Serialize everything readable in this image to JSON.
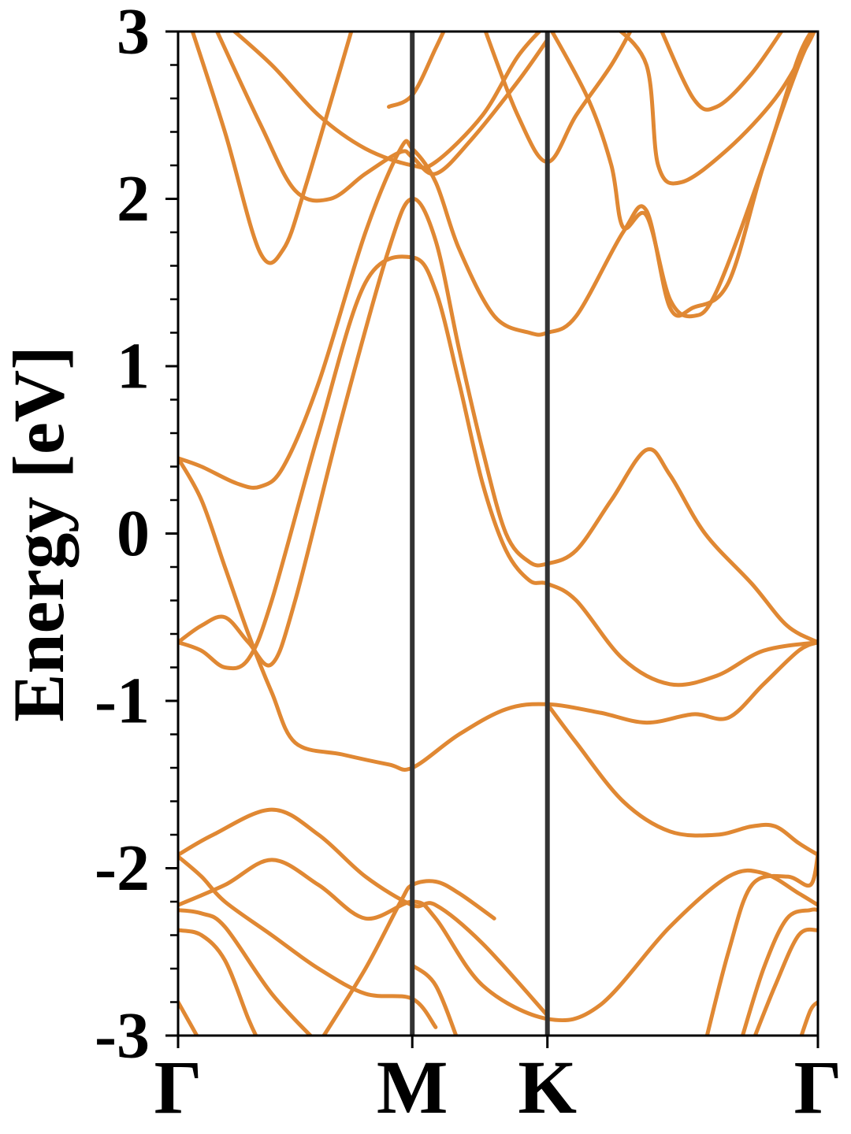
{
  "chart_data": {
    "type": "line",
    "title": "",
    "xlabel": "",
    "ylabel": "Energy [eV]",
    "ylim": [
      -3,
      3
    ],
    "y_ticks": [
      -3,
      -2,
      -1,
      0,
      1,
      2,
      3
    ],
    "y_tick_labels": [
      "-3",
      "-2",
      "-1",
      "0",
      "1",
      "2",
      "3"
    ],
    "y_minor_step": 0.2,
    "k_path": [
      {
        "label": "Γ",
        "k": 0
      },
      {
        "label": "M",
        "k": 1
      },
      {
        "label": "K",
        "k": 1.577
      },
      {
        "label": "Γ",
        "k": 2.732
      }
    ],
    "line_color": "#E08833",
    "divider_color": "#333333",
    "grid": false,
    "bands": [
      {
        "points": [
          [
            0,
            -2.22
          ],
          [
            0.2,
            -2.1
          ],
          [
            0.4,
            -1.95
          ],
          [
            0.6,
            -2.1
          ],
          [
            0.8,
            -2.3
          ],
          [
            1,
            -2.2
          ],
          [
            1.1,
            -2.3
          ],
          [
            1.3,
            -2.7
          ],
          [
            1.577,
            -2.9
          ],
          [
            1.8,
            -2.82
          ],
          [
            2.1,
            -2.35
          ],
          [
            2.35,
            -2.05
          ],
          [
            2.5,
            -2.03
          ],
          [
            2.65,
            -2.15
          ],
          [
            2.732,
            -2.22
          ]
        ]
      },
      {
        "points": [
          [
            0,
            -1.93
          ],
          [
            0.1,
            -2.05
          ],
          [
            0.2,
            -2.2
          ],
          [
            0.4,
            -2.4
          ],
          [
            0.6,
            -2.6
          ],
          [
            0.8,
            -2.75
          ],
          [
            1,
            -2.78
          ],
          [
            1.1,
            -2.95
          ]
        ]
      },
      {
        "points": [
          [
            0,
            -1.92
          ],
          [
            0.15,
            -1.8
          ],
          [
            0.4,
            -1.65
          ],
          [
            0.6,
            -1.8
          ],
          [
            0.8,
            -2.05
          ],
          [
            1,
            -2.22
          ],
          [
            1.1,
            -2.22
          ],
          [
            1.3,
            -2.45
          ],
          [
            1.577,
            -2.88
          ]
        ]
      },
      {
        "points": [
          [
            0,
            -2.25
          ],
          [
            0.1,
            -2.27
          ],
          [
            0.2,
            -2.35
          ],
          [
            0.4,
            -2.75
          ],
          [
            0.6,
            -3.05
          ]
        ]
      },
      {
        "points": [
          [
            0,
            -2.37
          ],
          [
            0.1,
            -2.4
          ],
          [
            0.2,
            -2.55
          ],
          [
            0.3,
            -2.9
          ],
          [
            0.35,
            -3.05
          ]
        ]
      },
      {
        "points": [
          [
            0,
            -2.8
          ],
          [
            0.1,
            -3.05
          ]
        ]
      },
      {
        "points": [
          [
            0.6,
            -3.05
          ],
          [
            0.8,
            -2.6
          ],
          [
            0.95,
            -2.2
          ],
          [
            1,
            -2.1
          ],
          [
            1.1,
            -2.08
          ],
          [
            1.2,
            -2.15
          ],
          [
            1.35,
            -2.3
          ]
        ]
      },
      {
        "points": [
          [
            1,
            -2.58
          ],
          [
            1.1,
            -2.7
          ],
          [
            1.2,
            -3.05
          ]
        ]
      },
      {
        "points": [
          [
            0,
            -0.65
          ],
          [
            0.1,
            -0.7
          ],
          [
            0.2,
            -0.8
          ],
          [
            0.3,
            -0.75
          ],
          [
            0.4,
            -0.4
          ],
          [
            0.6,
            0.6
          ],
          [
            0.8,
            1.5
          ],
          [
            1,
            1.65
          ],
          [
            1.1,
            1.45
          ],
          [
            1.2,
            0.9
          ],
          [
            1.3,
            0.3
          ],
          [
            1.4,
            -0.1
          ],
          [
            1.5,
            -0.28
          ],
          [
            1.577,
            -0.3
          ],
          [
            1.7,
            -0.4
          ],
          [
            1.9,
            -0.75
          ],
          [
            2.1,
            -0.9
          ],
          [
            2.3,
            -0.85
          ],
          [
            2.5,
            -0.7
          ],
          [
            2.732,
            -0.65
          ]
        ]
      },
      {
        "points": [
          [
            0,
            -0.65
          ],
          [
            0.1,
            -0.55
          ],
          [
            0.2,
            -0.5
          ],
          [
            0.3,
            -0.65
          ],
          [
            0.4,
            -0.78
          ],
          [
            0.5,
            -0.4
          ],
          [
            0.7,
            0.7
          ],
          [
            0.9,
            1.7
          ],
          [
            1,
            2
          ],
          [
            1.1,
            1.75
          ],
          [
            1.2,
            1.1
          ],
          [
            1.3,
            0.5
          ],
          [
            1.4,
            0.0
          ],
          [
            1.5,
            -0.17
          ],
          [
            1.577,
            -0.18
          ],
          [
            1.7,
            -0.1
          ],
          [
            1.85,
            0.2
          ],
          [
            2.0,
            0.5
          ],
          [
            2.1,
            0.35
          ],
          [
            2.25,
            0.0
          ],
          [
            2.45,
            -0.3
          ],
          [
            2.6,
            -0.55
          ],
          [
            2.732,
            -0.65
          ]
        ]
      },
      {
        "points": [
          [
            0,
            0.45
          ],
          [
            0.1,
            0.4
          ],
          [
            0.25,
            0.3
          ],
          [
            0.35,
            0.28
          ],
          [
            0.45,
            0.4
          ],
          [
            0.6,
            0.9
          ],
          [
            0.8,
            1.8
          ],
          [
            0.95,
            2.3
          ],
          [
            1,
            2.3
          ],
          [
            1.1,
            2.1
          ],
          [
            1.2,
            1.7
          ],
          [
            1.35,
            1.3
          ],
          [
            1.5,
            1.2
          ],
          [
            1.577,
            1.2
          ],
          [
            1.7,
            1.3
          ],
          [
            1.9,
            1.8
          ],
          [
            2,
            1.93
          ],
          [
            2.1,
            1.35
          ],
          [
            2.2,
            1.35
          ],
          [
            2.35,
            1.5
          ],
          [
            2.5,
            2.2
          ],
          [
            2.65,
            2.8
          ],
          [
            2.732,
            3.05
          ]
        ]
      },
      {
        "points": [
          [
            0,
            0.45
          ],
          [
            0.1,
            0.2
          ],
          [
            0.2,
            -0.2
          ],
          [
            0.3,
            -0.6
          ],
          [
            0.4,
            -0.95
          ],
          [
            0.5,
            -1.25
          ],
          [
            0.7,
            -1.32
          ],
          [
            0.9,
            -1.38
          ],
          [
            1,
            -1.4
          ],
          [
            1.2,
            -1.2
          ],
          [
            1.4,
            -1.05
          ],
          [
            1.577,
            -1.02
          ],
          [
            1.8,
            -1.07
          ],
          [
            2,
            -1.13
          ],
          [
            2.2,
            -1.08
          ],
          [
            2.35,
            -1.1
          ],
          [
            2.5,
            -0.9
          ],
          [
            2.65,
            -0.7
          ],
          [
            2.732,
            -0.65
          ]
        ]
      },
      {
        "points": [
          [
            1.577,
            -1.02
          ],
          [
            1.7,
            -1.25
          ],
          [
            1.9,
            -1.6
          ],
          [
            2.1,
            -1.78
          ],
          [
            2.3,
            -1.8
          ],
          [
            2.45,
            -1.75
          ],
          [
            2.55,
            -1.75
          ],
          [
            2.65,
            -1.85
          ],
          [
            2.732,
            -1.92
          ]
        ]
      },
      {
        "points": [
          [
            0.05,
            3.05
          ],
          [
            0.2,
            2.4
          ],
          [
            0.35,
            1.68
          ],
          [
            0.45,
            1.7
          ],
          [
            0.55,
            2.1
          ],
          [
            0.75,
            3.05
          ]
        ]
      },
      {
        "points": [
          [
            0.15,
            3.05
          ],
          [
            0.35,
            2.45
          ],
          [
            0.5,
            2.05
          ],
          [
            0.65,
            2.0
          ],
          [
            0.8,
            2.15
          ],
          [
            0.95,
            2.28
          ],
          [
            1,
            2.25
          ],
          [
            1.1,
            2.15
          ],
          [
            1.25,
            2.35
          ],
          [
            1.45,
            2.7
          ],
          [
            1.577,
            2.95
          ]
        ]
      },
      {
        "points": [
          [
            0.2,
            3.05
          ],
          [
            0.4,
            2.8
          ],
          [
            0.6,
            2.5
          ],
          [
            0.8,
            2.3
          ],
          [
            1,
            2.2
          ],
          [
            1.1,
            2.22
          ],
          [
            1.3,
            2.5
          ],
          [
            1.45,
            2.85
          ],
          [
            1.577,
            3.05
          ]
        ]
      },
      {
        "points": [
          [
            0.9,
            2.55
          ],
          [
            1,
            2.62
          ],
          [
            1.1,
            2.9
          ],
          [
            1.15,
            3.05
          ]
        ]
      },
      {
        "points": [
          [
            1.3,
            3.05
          ],
          [
            1.45,
            2.5
          ],
          [
            1.577,
            2.22
          ],
          [
            1.7,
            2.5
          ],
          [
            1.85,
            2.8
          ],
          [
            1.95,
            3.05
          ]
        ]
      },
      {
        "points": [
          [
            1.577,
            3.05
          ],
          [
            1.75,
            2.6
          ],
          [
            1.85,
            2.2
          ],
          [
            1.9,
            1.83
          ],
          [
            2.0,
            1.9
          ],
          [
            2.1,
            1.4
          ],
          [
            2.2,
            1.3
          ],
          [
            2.3,
            1.45
          ],
          [
            2.5,
            2.2
          ],
          [
            2.65,
            2.85
          ],
          [
            2.732,
            3.05
          ]
        ]
      },
      {
        "points": [
          [
            1.85,
            3.05
          ],
          [
            2,
            2.8
          ],
          [
            2.05,
            2.2
          ],
          [
            2.15,
            2.1
          ],
          [
            2.35,
            2.3
          ],
          [
            2.55,
            2.6
          ],
          [
            2.68,
            2.9
          ],
          [
            2.732,
            3.05
          ]
        ]
      },
      {
        "points": [
          [
            2.05,
            3.05
          ],
          [
            2.2,
            2.6
          ],
          [
            2.3,
            2.55
          ],
          [
            2.45,
            2.75
          ],
          [
            2.6,
            3.05
          ]
        ]
      },
      {
        "points": [
          [
            2.25,
            -3.05
          ],
          [
            2.35,
            -2.5
          ],
          [
            2.45,
            -2.1
          ],
          [
            2.6,
            -2.05
          ],
          [
            2.7,
            -2.1
          ],
          [
            2.732,
            -1.92
          ]
        ]
      },
      {
        "points": [
          [
            2.4,
            -3.05
          ],
          [
            2.5,
            -2.6
          ],
          [
            2.6,
            -2.3
          ],
          [
            2.7,
            -2.25
          ],
          [
            2.732,
            -2.25
          ]
        ]
      },
      {
        "points": [
          [
            2.45,
            -3.05
          ],
          [
            2.55,
            -2.7
          ],
          [
            2.65,
            -2.4
          ],
          [
            2.732,
            -2.37
          ]
        ]
      },
      {
        "points": [
          [
            2.65,
            -3.05
          ],
          [
            2.7,
            -2.85
          ],
          [
            2.732,
            -2.8
          ]
        ]
      }
    ]
  }
}
